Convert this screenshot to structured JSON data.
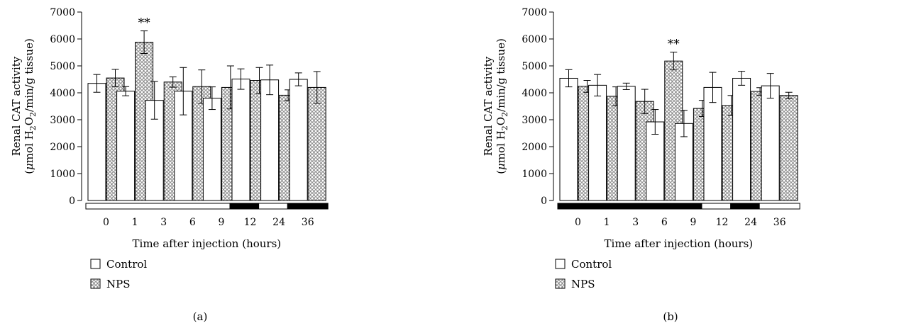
{
  "chart_data": [
    {
      "type": "bar",
      "panel_label": "(a)",
      "ylabel_line1": "Renal CAT activity",
      "ylabel_line2_parts": [
        "(",
        "μ",
        "mol H",
        "2",
        "O",
        "2",
        "/min/g tissue)"
      ],
      "xlabel": "Time after injection (hours)",
      "ylim": [
        0,
        7000
      ],
      "yticks": [
        "0",
        "1000",
        "2000",
        "3000",
        "4000",
        "5000",
        "6000",
        "7000"
      ],
      "categories": [
        "0",
        "1",
        "3",
        "6",
        "9",
        "12",
        "24",
        "36"
      ],
      "series": [
        {
          "name": "Control",
          "values": [
            4350,
            4060,
            3720,
            4060,
            3800,
            4510,
            4480,
            4500
          ],
          "errors": [
            330,
            170,
            700,
            880,
            420,
            380,
            550,
            240
          ]
        },
        {
          "name": "NPS",
          "values": [
            4550,
            5880,
            4400,
            4230,
            4200,
            4460,
            3910,
            4200
          ],
          "errors": [
            320,
            420,
            190,
            620,
            800,
            480,
            200,
            590
          ]
        }
      ],
      "annotations": [
        {
          "category": "1",
          "series": "NPS",
          "text": "**"
        }
      ],
      "light_dark_bar": [
        {
          "from": "0",
          "to": "9",
          "color": "#ffffff"
        },
        {
          "from": "12",
          "to": "12",
          "color": "#000000"
        },
        {
          "from": "24",
          "to": "24",
          "color": "#ffffff"
        },
        {
          "from": "36",
          "to": "36",
          "color": "#000000"
        }
      ]
    },
    {
      "type": "bar",
      "panel_label": "(b)",
      "ylabel_line1": "Renal CAT activity",
      "ylabel_line2_parts": [
        "(",
        "μ",
        "mol H",
        "2",
        "O",
        "2",
        "/min/g tissue)"
      ],
      "xlabel": "Time after injection (hours)",
      "ylim": [
        0,
        7000
      ],
      "yticks": [
        "0",
        "1000",
        "2000",
        "3000",
        "4000",
        "5000",
        "6000",
        "7000"
      ],
      "categories": [
        "0",
        "1",
        "3",
        "6",
        "9",
        "12",
        "24",
        "36"
      ],
      "series": [
        {
          "name": "Control",
          "values": [
            4540,
            4280,
            4240,
            2920,
            2860,
            4200,
            4540,
            4260
          ],
          "errors": [
            320,
            400,
            120,
            460,
            490,
            560,
            260,
            460
          ]
        },
        {
          "name": "NPS",
          "values": [
            4240,
            3870,
            3680,
            5180,
            3420,
            3530,
            4050,
            3900
          ],
          "errors": [
            220,
            350,
            450,
            330,
            300,
            370,
            140,
            120
          ]
        }
      ],
      "annotations": [
        {
          "category": "6",
          "series": "NPS",
          "text": "**"
        }
      ],
      "light_dark_bar": [
        {
          "from": "0",
          "to": "9",
          "color": "#000000"
        },
        {
          "from": "12",
          "to": "12",
          "color": "#ffffff"
        },
        {
          "from": "24",
          "to": "24",
          "color": "#000000"
        },
        {
          "from": "36",
          "to": "36",
          "color": "#ffffff"
        }
      ]
    }
  ],
  "legend": [
    {
      "label": "Control",
      "pattern": "plain"
    },
    {
      "label": "NPS",
      "pattern": "dotted"
    }
  ]
}
